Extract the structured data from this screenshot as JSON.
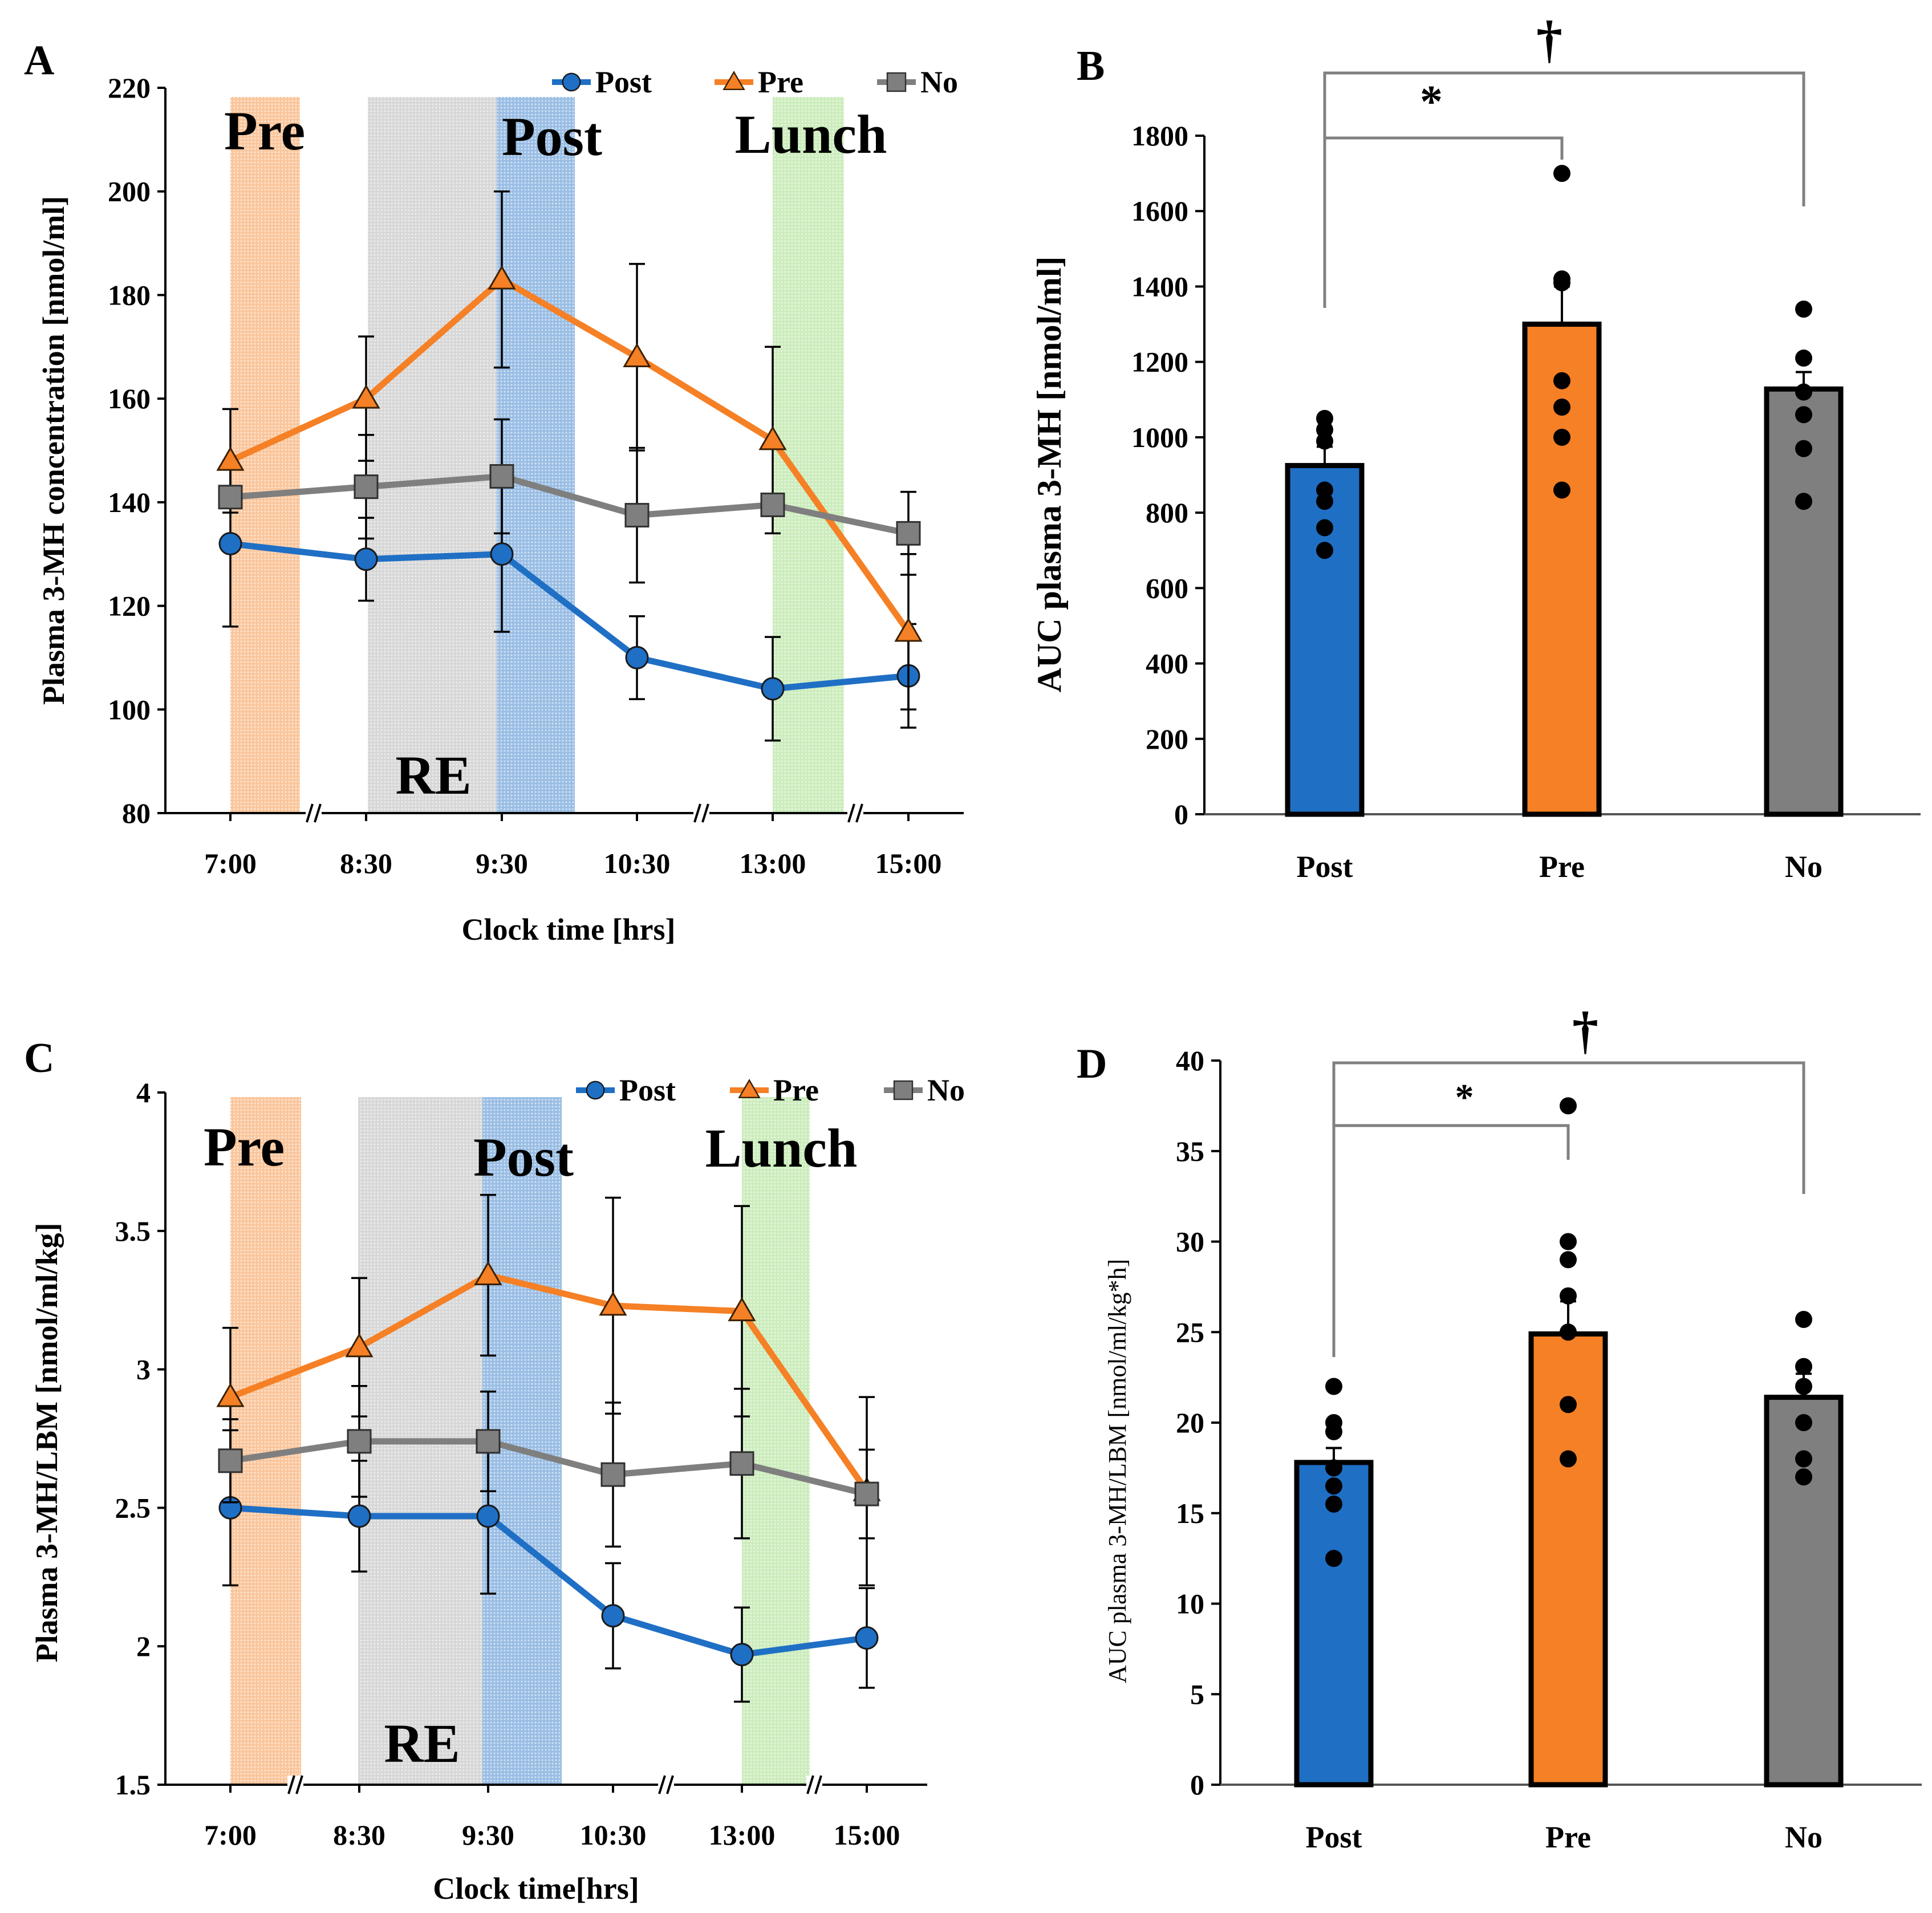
{
  "colors": {
    "post": "#1f6fc5",
    "pre": "#f58025",
    "no": "#7f7f7f",
    "lunch": "#8dd66b",
    "re": "#a6a6a6",
    "axis": "#000000",
    "bracket": "#808080"
  },
  "chart_data": [
    {
      "id": "A",
      "type": "line",
      "panel_label": "A",
      "ylabel": "Plasma 3-MH concentration [nmol/ml]",
      "xlabel": "Clock time [hrs]",
      "categories": [
        "7:00",
        "8:30",
        "9:30",
        "10:30",
        "13:00",
        "15:00"
      ],
      "ylim": [
        80,
        220
      ],
      "yticks": [
        "80",
        "100",
        "120",
        "140",
        "160",
        "180",
        "200",
        "220"
      ],
      "axis_breaks": [
        "7:00-8:30",
        "10:30-13:00",
        "13:00-15:00"
      ],
      "series": [
        {
          "name": "Post",
          "marker": "circle",
          "values": [
            132,
            129,
            130,
            110,
            104,
            106.5
          ],
          "err": [
            16,
            8,
            15,
            8,
            10,
            10
          ]
        },
        {
          "name": "Pre",
          "marker": "triangle",
          "values": [
            148,
            160,
            183,
            168,
            152,
            115
          ],
          "err": [
            10,
            12,
            17,
            18,
            18,
            15
          ]
        },
        {
          "name": "No",
          "marker": "square",
          "values": [
            141,
            143,
            145,
            137.5,
            139.5,
            134
          ],
          "err": [
            0,
            10,
            11,
            13,
            0,
            8
          ]
        }
      ],
      "shaded_regions": [
        {
          "label": "Pre",
          "color": "pre"
        },
        {
          "label": "RE",
          "color": "re"
        },
        {
          "label": "Post",
          "color": "post"
        },
        {
          "label": "Lunch",
          "color": "lunch"
        }
      ],
      "legend": [
        "Post",
        "Pre",
        "No"
      ]
    },
    {
      "id": "B",
      "type": "bar",
      "panel_label": "B",
      "ylabel": "AUC plasma 3-MH [nmol/ml]",
      "categories": [
        "Post",
        "Pre",
        "No"
      ],
      "values": [
        925,
        1300,
        1128
      ],
      "err": [
        50,
        100,
        45
      ],
      "ylim": [
        0,
        1800
      ],
      "yticks": [
        "0",
        "200",
        "400",
        "600",
        "800",
        "1000",
        "1200",
        "1400",
        "1600",
        "1800"
      ],
      "points": [
        [
          1050,
          1020,
          990,
          860,
          830,
          760,
          700
        ],
        [
          1700,
          1420,
          1410,
          1150,
          1080,
          1000,
          860
        ],
        [
          1340,
          1210,
          1120,
          1060,
          970,
          830
        ]
      ],
      "significance": [
        {
          "from": "Post",
          "to": "Pre",
          "symbol": "*"
        },
        {
          "from": "Post",
          "to": "No",
          "symbol": "†"
        }
      ]
    },
    {
      "id": "C",
      "type": "line",
      "panel_label": "C",
      "ylabel": "Plasma 3-MH/LBM [nmol/ml/kg]",
      "xlabel": "Clock time[hrs]",
      "categories": [
        "7:00",
        "8:30",
        "9:30",
        "10:30",
        "13:00",
        "15:00"
      ],
      "ylim": [
        1.5,
        4
      ],
      "yticks": [
        "1.5",
        "2",
        "2.5",
        "3",
        "3.5",
        "4"
      ],
      "axis_breaks": [
        "7:00-8:30",
        "10:30-13:00",
        "13:00-15:00"
      ],
      "series": [
        {
          "name": "Post",
          "marker": "circle",
          "values": [
            2.5,
            2.47,
            2.47,
            2.11,
            1.97,
            2.03
          ],
          "err": [
            0.28,
            0.2,
            0.28,
            0.19,
            0.17,
            0.18
          ]
        },
        {
          "name": "Pre",
          "marker": "triangle",
          "values": [
            2.9,
            3.08,
            3.34,
            3.23,
            3.21,
            2.56
          ],
          "err": [
            0.25,
            0.25,
            0.29,
            0.39,
            0.38,
            0.34
          ]
        },
        {
          "name": "No",
          "marker": "square",
          "values": [
            2.67,
            2.74,
            2.74,
            2.62,
            2.66,
            2.55
          ],
          "err": [
            0.15,
            0.2,
            0.18,
            0.26,
            0.27,
            0.16
          ]
        }
      ],
      "shaded_regions": [
        {
          "label": "Pre",
          "color": "pre"
        },
        {
          "label": "RE",
          "color": "re"
        },
        {
          "label": "Post",
          "color": "post"
        },
        {
          "label": "Lunch",
          "color": "lunch"
        }
      ],
      "legend": [
        "Post",
        "Pre",
        "No"
      ]
    },
    {
      "id": "D",
      "type": "bar",
      "panel_label": "D",
      "ylabel": "AUC plasma 3-MH/LBM [nmol/ml/kg*h]",
      "categories": [
        "Post",
        "Pre",
        "No"
      ],
      "values": [
        17.8,
        24.9,
        21.4
      ],
      "err": [
        0.8,
        1.8,
        1.3
      ],
      "ylim": [
        0,
        40
      ],
      "yticks": [
        "0",
        "5",
        "10",
        "15",
        "20",
        "25",
        "30",
        "35",
        "40"
      ],
      "points": [
        [
          22,
          20,
          19.5,
          17.5,
          16.5,
          15.5,
          12.5
        ],
        [
          37.5,
          30,
          29,
          27,
          25,
          21,
          18
        ],
        [
          25.7,
          23.1,
          22,
          20,
          18,
          17
        ]
      ],
      "significance": [
        {
          "from": "Post",
          "to": "Pre",
          "symbol": "*"
        },
        {
          "from": "Post",
          "to": "No",
          "symbol": "†"
        }
      ]
    }
  ]
}
